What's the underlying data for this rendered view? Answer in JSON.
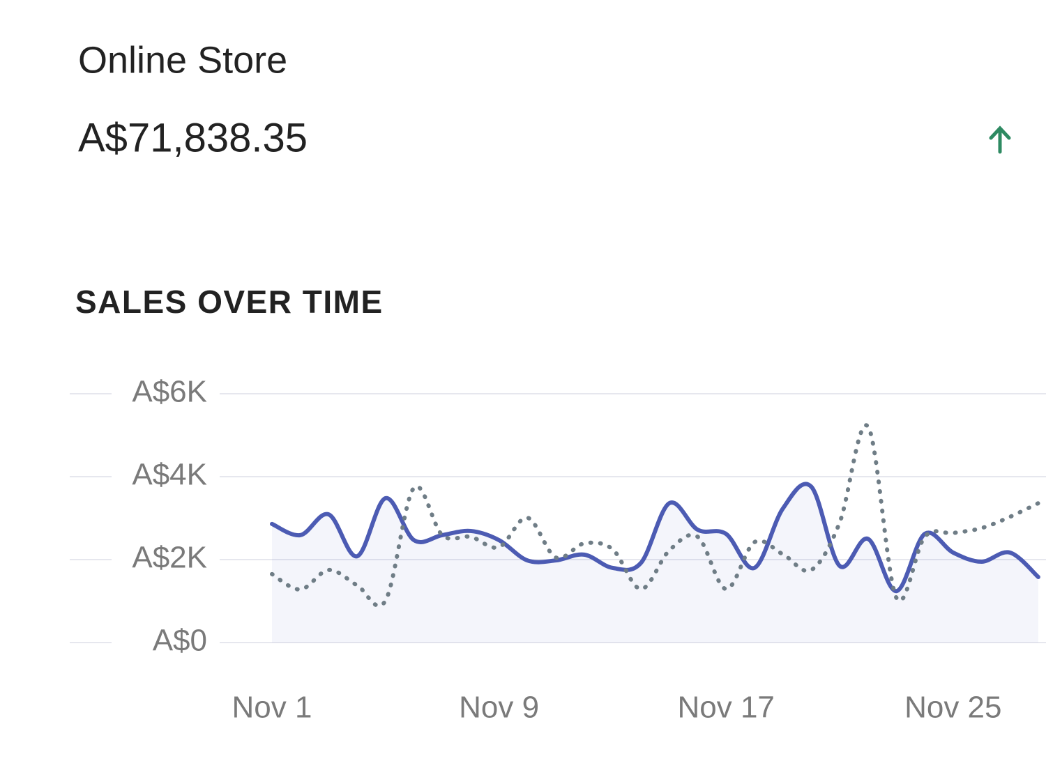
{
  "header": {
    "title": "Online Store",
    "total": "A$71,838.35"
  },
  "chart_data": {
    "type": "line",
    "title": "SALES OVER TIME",
    "categories": [
      "Nov 1",
      null,
      null,
      null,
      null,
      null,
      null,
      null,
      "Nov 9",
      null,
      null,
      null,
      null,
      null,
      null,
      null,
      "Nov 17",
      null,
      null,
      null,
      null,
      null,
      null,
      null,
      "Nov 25",
      null,
      null,
      null
    ],
    "series": [
      {
        "color": "#4c5bb3",
        "style": "solid",
        "fill": true,
        "values": [
          2860,
          2590,
          3090,
          2080,
          3480,
          2470,
          2590,
          2690,
          2470,
          1980,
          1980,
          2120,
          1800,
          1920,
          3360,
          2720,
          2620,
          1800,
          3230,
          3760,
          1850,
          2500,
          1240,
          2620,
          2170,
          1950,
          2170,
          1580
        ]
      },
      {
        "color": "#6f7d86",
        "style": "dotted",
        "fill": false,
        "values": [
          1650,
          1280,
          1750,
          1380,
          1010,
          3730,
          2590,
          2550,
          2300,
          3010,
          2050,
          2390,
          2250,
          1290,
          2220,
          2550,
          1290,
          2420,
          2130,
          1750,
          2890,
          5210,
          1080,
          2550,
          2640,
          2760,
          3030,
          3360
        ]
      }
    ],
    "ylim": [
      0,
      6000
    ],
    "yticks": [
      {
        "value": 0,
        "label": "A$0"
      },
      {
        "value": 2000,
        "label": "A$2K"
      },
      {
        "value": 4000,
        "label": "A$4K"
      },
      {
        "value": 6000,
        "label": "A$6K"
      }
    ],
    "grid": true
  }
}
